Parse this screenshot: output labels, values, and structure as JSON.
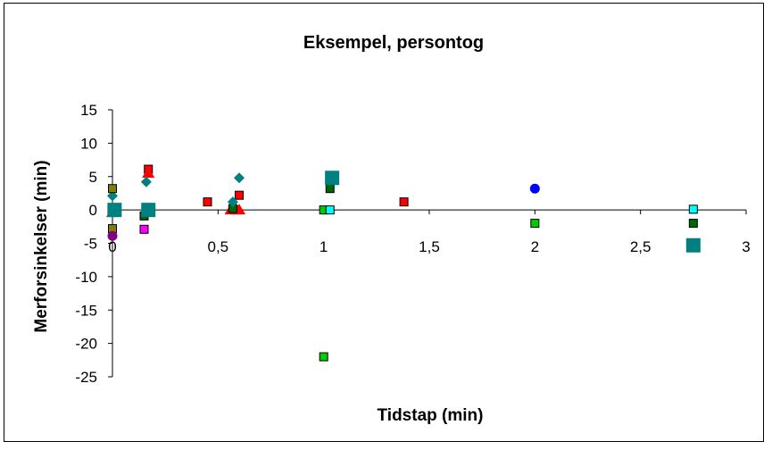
{
  "chart_data": {
    "type": "scatter",
    "title": "Eksempel, persontog",
    "xlabel": "Tidstap (min)",
    "ylabel": "Merforsinkelser (min)",
    "xlim": [
      0,
      3
    ],
    "ylim": [
      -25,
      15
    ],
    "x_ticks": [
      {
        "value": 0,
        "label": "0"
      },
      {
        "value": 0.5,
        "label": "0,5"
      },
      {
        "value": 1,
        "label": "1"
      },
      {
        "value": 1.5,
        "label": "1,5"
      },
      {
        "value": 2,
        "label": "2"
      },
      {
        "value": 2.5,
        "label": "2,5"
      },
      {
        "value": 3,
        "label": "3"
      }
    ],
    "y_ticks": [
      {
        "value": 15,
        "label": "15"
      },
      {
        "value": 10,
        "label": "10"
      },
      {
        "value": 5,
        "label": "5"
      },
      {
        "value": 0,
        "label": "0"
      },
      {
        "value": -5,
        "label": "-5"
      },
      {
        "value": -10,
        "label": "-10"
      },
      {
        "value": -15,
        "label": "-15"
      },
      {
        "value": -20,
        "label": "-20"
      },
      {
        "value": -25,
        "label": "-25"
      }
    ],
    "grid": false,
    "legend": "none",
    "series": [
      {
        "color": "#ff0000",
        "marker": "square",
        "points": [
          [
            0.45,
            1.2
          ],
          [
            0.6,
            2.2
          ],
          [
            1.38,
            1.2
          ],
          [
            0.58,
            0
          ],
          [
            0.17,
            6.1
          ]
        ]
      },
      {
        "color": "#ff0000",
        "marker": "triangle",
        "points": [
          [
            0.17,
            5.5
          ],
          [
            0.6,
            0
          ],
          [
            0.56,
            0
          ],
          [
            0.0,
            -0.4
          ]
        ]
      },
      {
        "color": "#00cc00",
        "marker": "square",
        "points": [
          [
            1.0,
            -22
          ],
          [
            1.0,
            0
          ],
          [
            2.0,
            -2.0
          ]
        ]
      },
      {
        "color": "#006600",
        "marker": "square",
        "points": [
          [
            1.03,
            3.2
          ],
          [
            0.15,
            -0.9
          ],
          [
            2.75,
            -2.0
          ],
          [
            0.57,
            0.2
          ]
        ]
      },
      {
        "color": "#00ffff",
        "marker": "square",
        "points": [
          [
            1.03,
            0
          ],
          [
            2.75,
            0.1
          ]
        ]
      },
      {
        "color": "#008080",
        "marker": "square-large",
        "points": [
          [
            1.04,
            4.8
          ],
          [
            2.75,
            -5.3
          ],
          [
            0.17,
            0
          ],
          [
            0.01,
            0
          ]
        ]
      },
      {
        "color": "#008080",
        "marker": "diamond",
        "points": [
          [
            0.6,
            4.8
          ],
          [
            0.16,
            4.2
          ],
          [
            0.0,
            2.1
          ],
          [
            0.57,
            1.2
          ]
        ]
      },
      {
        "color": "#ff00ff",
        "marker": "square",
        "points": [
          [
            0.15,
            -2.9
          ]
        ]
      },
      {
        "color": "#808000",
        "marker": "square",
        "points": [
          [
            0.0,
            3.2
          ],
          [
            0.0,
            -2.8
          ]
        ]
      },
      {
        "color": "#800080",
        "marker": "circle",
        "points": [
          [
            0.0,
            -3.9
          ]
        ]
      },
      {
        "color": "#0000ff",
        "marker": "circle",
        "points": [
          [
            2.0,
            3.2
          ]
        ]
      }
    ]
  }
}
